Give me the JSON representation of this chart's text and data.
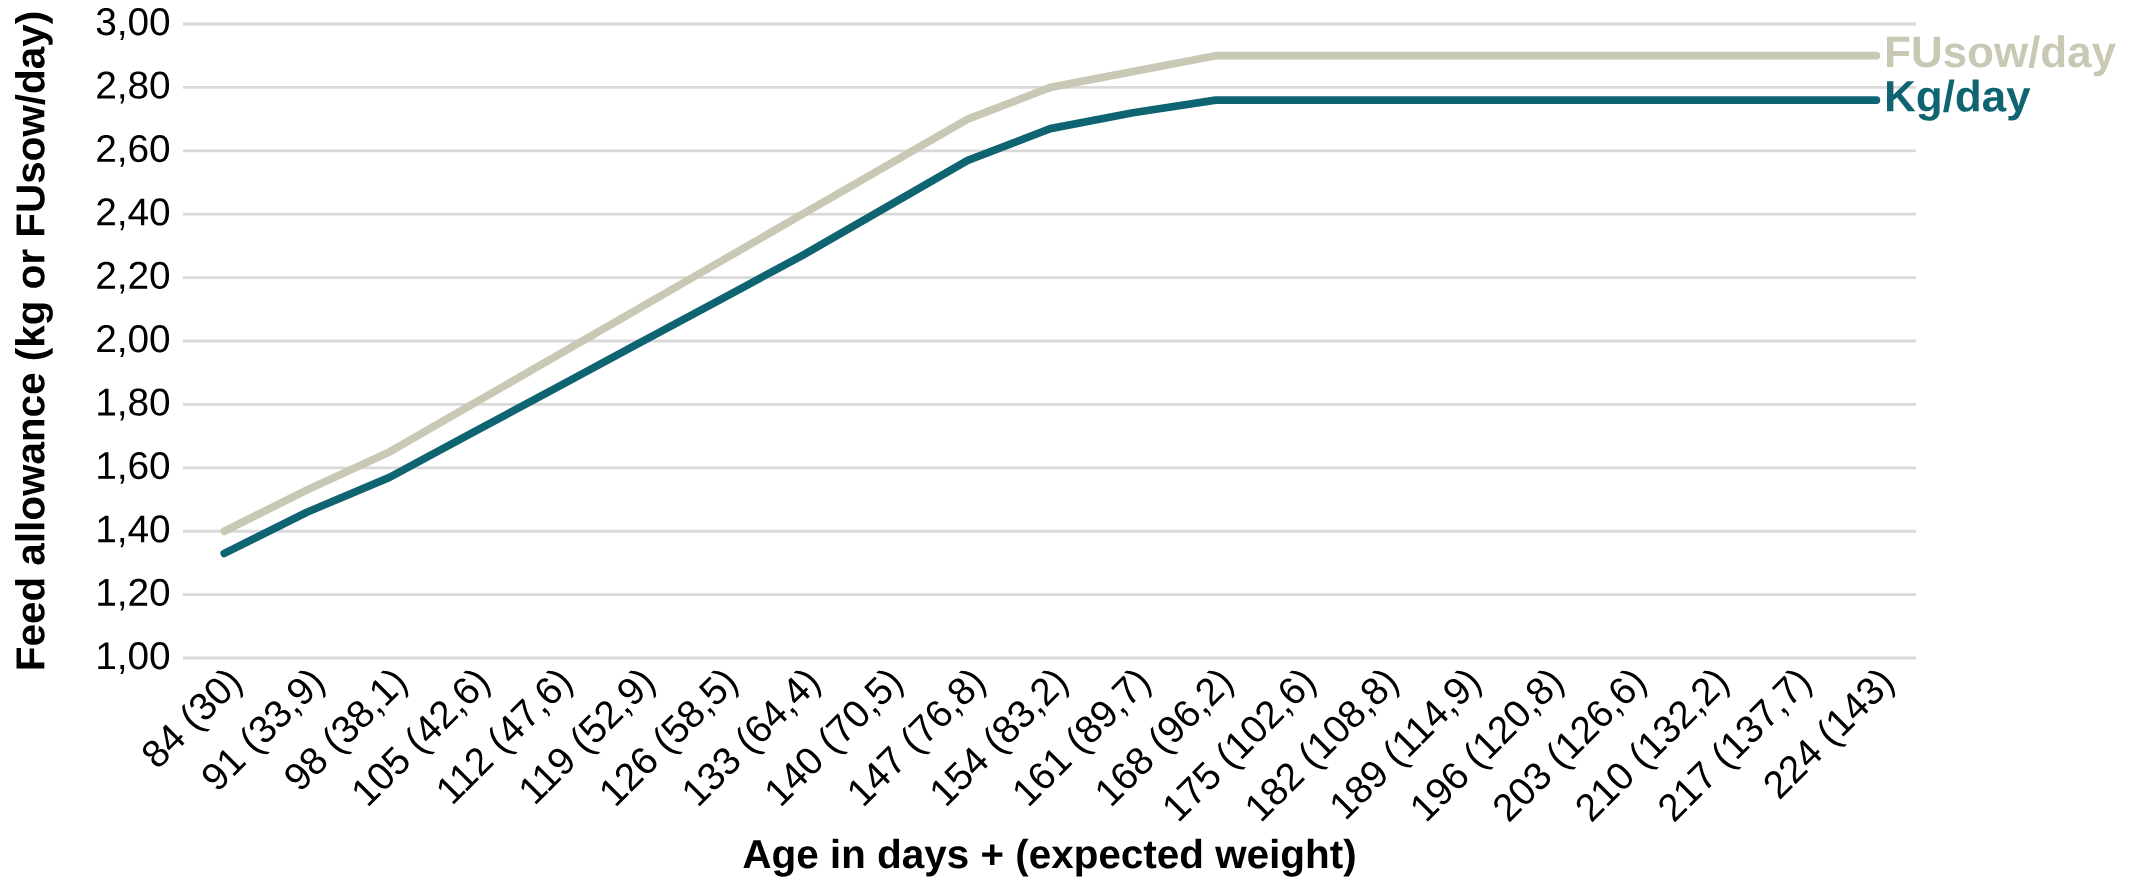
{
  "chart_data": {
    "type": "line",
    "xlabel": "Age in days + (expected weight)",
    "ylabel": "Feed allowance (kg or FUsow/day)",
    "categories": [
      "84 (30)",
      "91 (33,9)",
      "98 (38,1)",
      "105 (42,6)",
      "112 (47,6)",
      "119 (52,9)",
      "126 (58,5)",
      "133 (64,4)",
      "140 (70,5)",
      "147 (76,8)",
      "154 (83,2)",
      "161 (89,7)",
      "168 (96,2)",
      "175 (102,6)",
      "182 (108,8)",
      "189 (114,9)",
      "196 (120,8)",
      "203 (126,6)",
      "210 (132,2)",
      "217 (137,7)",
      "224 (143)"
    ],
    "series": [
      {
        "name": "FUsow/day",
        "color": "#c8c8b4",
        "values": [
          1.4,
          1.53,
          1.65,
          1.8,
          1.95,
          2.1,
          2.25,
          2.4,
          2.55,
          2.7,
          2.8,
          2.85,
          2.9,
          2.9,
          2.9,
          2.9,
          2.9,
          2.9,
          2.9,
          2.9,
          2.9
        ]
      },
      {
        "name": "Kg/day",
        "color": "#0e6470",
        "values": [
          1.33,
          1.46,
          1.57,
          1.71,
          1.85,
          1.99,
          2.13,
          2.27,
          2.42,
          2.57,
          2.67,
          2.72,
          2.76,
          2.76,
          2.76,
          2.76,
          2.76,
          2.76,
          2.76,
          2.76,
          2.76
        ]
      }
    ],
    "ylim": [
      1.0,
      3.0
    ],
    "yticks": [
      {
        "value": 1.0,
        "label": "1,00"
      },
      {
        "value": 1.2,
        "label": "1,20"
      },
      {
        "value": 1.4,
        "label": "1,40"
      },
      {
        "value": 1.6,
        "label": "1,60"
      },
      {
        "value": 1.8,
        "label": "1,80"
      },
      {
        "value": 2.0,
        "label": "2,00"
      },
      {
        "value": 2.2,
        "label": "2,20"
      },
      {
        "value": 2.4,
        "label": "2,40"
      },
      {
        "value": 2.6,
        "label": "2,60"
      },
      {
        "value": 2.8,
        "label": "2,80"
      },
      {
        "value": 3.0,
        "label": "3,00"
      }
    ],
    "grid": "y",
    "legend": false,
    "marker": "none",
    "line_style": "solid"
  }
}
